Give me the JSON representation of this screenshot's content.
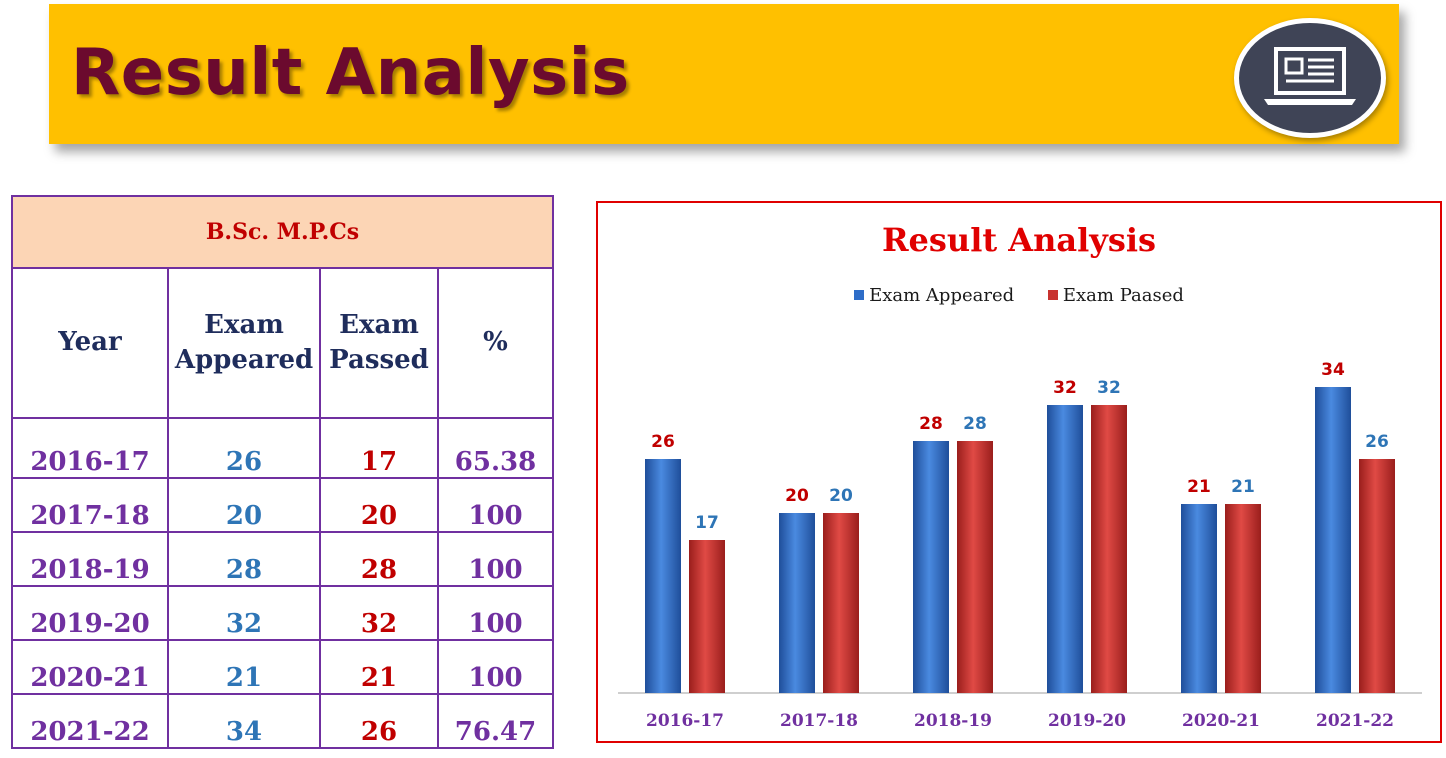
{
  "banner": {
    "title": "Result Analysis",
    "icon": "laptop-icon"
  },
  "table": {
    "course": "B.Sc. M.P.Cs",
    "headers": {
      "year": "Year",
      "appeared": "Exam Appeared",
      "passed": "Exam Passed",
      "percent": "%"
    },
    "rows": [
      {
        "year": "2016-17",
        "appeared": "26",
        "passed": "17",
        "percent": "65.38"
      },
      {
        "year": "2017-18",
        "appeared": "20",
        "passed": "20",
        "percent": "100"
      },
      {
        "year": "2018-19",
        "appeared": "28",
        "passed": "28",
        "percent": "100"
      },
      {
        "year": "2019-20",
        "appeared": "32",
        "passed": "32",
        "percent": "100"
      },
      {
        "year": "2020-21",
        "appeared": "21",
        "passed": "21",
        "percent": "100"
      },
      {
        "year": "2021-22",
        "appeared": "34",
        "passed": "26",
        "percent": "76.47"
      }
    ]
  },
  "chart_data": {
    "type": "bar",
    "title": "Result Analysis",
    "categories": [
      "2016-17",
      "2017-18",
      "2018-19",
      "2019-20",
      "2020-21",
      "2021-22"
    ],
    "series": [
      {
        "name": "Exam Appeared",
        "values": [
          26,
          20,
          28,
          32,
          21,
          34
        ],
        "color": "#2E6DC8",
        "label_color": "#2E75B6"
      },
      {
        "name": "Exam Paased",
        "values": [
          17,
          20,
          28,
          32,
          21,
          26
        ],
        "color": "#C8322F",
        "label_color": "#C00000"
      }
    ],
    "ylim": [
      0,
      40
    ],
    "legend": "top",
    "grid": false,
    "category_label_color": "#7030A0"
  }
}
